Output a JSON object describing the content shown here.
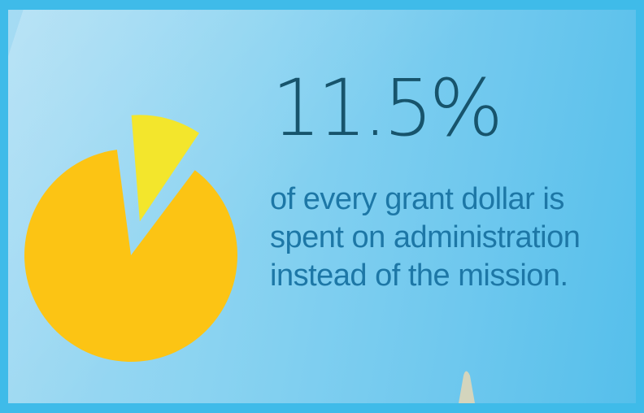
{
  "headline": {
    "value": "11.5%"
  },
  "caption": {
    "lines": [
      "of every grant dollar is",
      "spent on administration",
      "instead of the mission."
    ]
  },
  "colors": {
    "background": "#3fbbe9",
    "headline": "#17546c",
    "caption": "#1d77a6",
    "slice_highlight": "#f3e62c",
    "slice_main": "#fcc414"
  },
  "chart_data": {
    "type": "pie",
    "categories": [
      "Administration",
      "Mission"
    ],
    "values": [
      11.5,
      88.5
    ],
    "exploded": "Administration",
    "colors": [
      "#f3e62c",
      "#fcc414"
    ],
    "title": "",
    "legend": "none"
  }
}
